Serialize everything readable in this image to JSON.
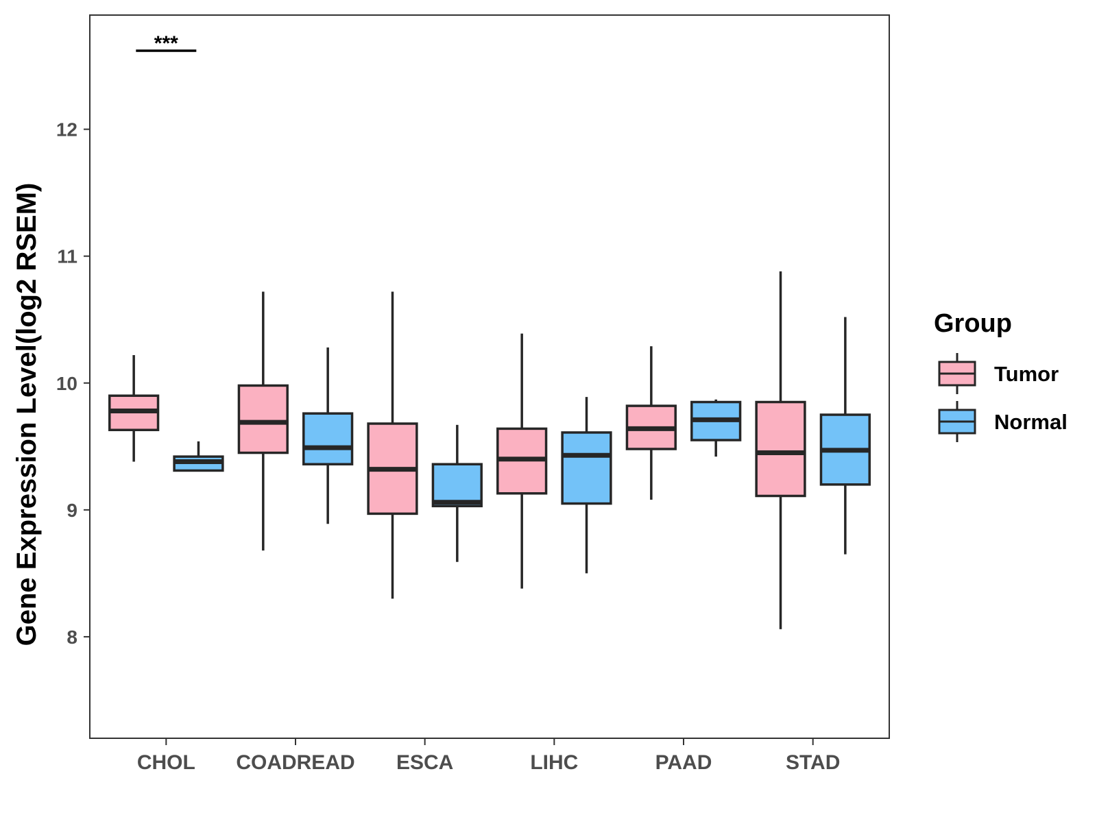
{
  "chart_data": {
    "type": "boxplot",
    "title": "",
    "xlabel": "",
    "ylabel": "Gene Expression Level(log2 RSEM)",
    "ylim": [
      7.2,
      12.9
    ],
    "yticks": [
      8,
      9,
      10,
      11,
      12
    ],
    "grid": false,
    "categories": [
      "CHOL",
      "COADREAD",
      "ESCA",
      "LIHC",
      "PAAD",
      "STAD"
    ],
    "legend": {
      "title": "Group",
      "position": "right",
      "entries": [
        {
          "name": "Tumor",
          "color": "#FBB1C1"
        },
        {
          "name": "Normal",
          "color": "#73C2F8"
        }
      ]
    },
    "series": [
      {
        "name": "Tumor",
        "color": "#FBB1C1",
        "boxes": [
          {
            "category": "CHOL",
            "whisker_low": 9.38,
            "q1": 9.63,
            "median": 9.78,
            "q3": 9.9,
            "whisker_high": 10.22
          },
          {
            "category": "COADREAD",
            "whisker_low": 8.68,
            "q1": 9.45,
            "median": 9.69,
            "q3": 9.98,
            "whisker_high": 10.72
          },
          {
            "category": "ESCA",
            "whisker_low": 8.3,
            "q1": 8.97,
            "median": 9.32,
            "q3": 9.68,
            "whisker_high": 10.72
          },
          {
            "category": "LIHC",
            "whisker_low": 8.38,
            "q1": 9.13,
            "median": 9.4,
            "q3": 9.64,
            "whisker_high": 10.39
          },
          {
            "category": "PAAD",
            "whisker_low": 9.08,
            "q1": 9.48,
            "median": 9.64,
            "q3": 9.82,
            "whisker_high": 10.29
          },
          {
            "category": "STAD",
            "whisker_low": 8.06,
            "q1": 9.11,
            "median": 9.45,
            "q3": 9.85,
            "whisker_high": 10.88
          }
        ]
      },
      {
        "name": "Normal",
        "color": "#73C2F8",
        "boxes": [
          {
            "category": "CHOL",
            "whisker_low": 9.31,
            "q1": 9.31,
            "median": 9.38,
            "q3": 9.42,
            "whisker_high": 9.54
          },
          {
            "category": "COADREAD",
            "whisker_low": 8.89,
            "q1": 9.36,
            "median": 9.49,
            "q3": 9.76,
            "whisker_high": 10.28
          },
          {
            "category": "ESCA",
            "whisker_low": 8.59,
            "q1": 9.03,
            "median": 9.06,
            "q3": 9.36,
            "whisker_high": 9.67
          },
          {
            "category": "LIHC",
            "whisker_low": 8.5,
            "q1": 9.05,
            "median": 9.43,
            "q3": 9.61,
            "whisker_high": 9.89
          },
          {
            "category": "PAAD",
            "whisker_low": 9.42,
            "q1": 9.55,
            "median": 9.71,
            "q3": 9.85,
            "whisker_high": 9.87
          },
          {
            "category": "STAD",
            "whisker_low": 8.65,
            "q1": 9.2,
            "median": 9.47,
            "q3": 9.75,
            "whisker_high": 10.52
          }
        ]
      }
    ],
    "annotations": [
      {
        "category": "CHOL",
        "text": "***"
      }
    ]
  }
}
